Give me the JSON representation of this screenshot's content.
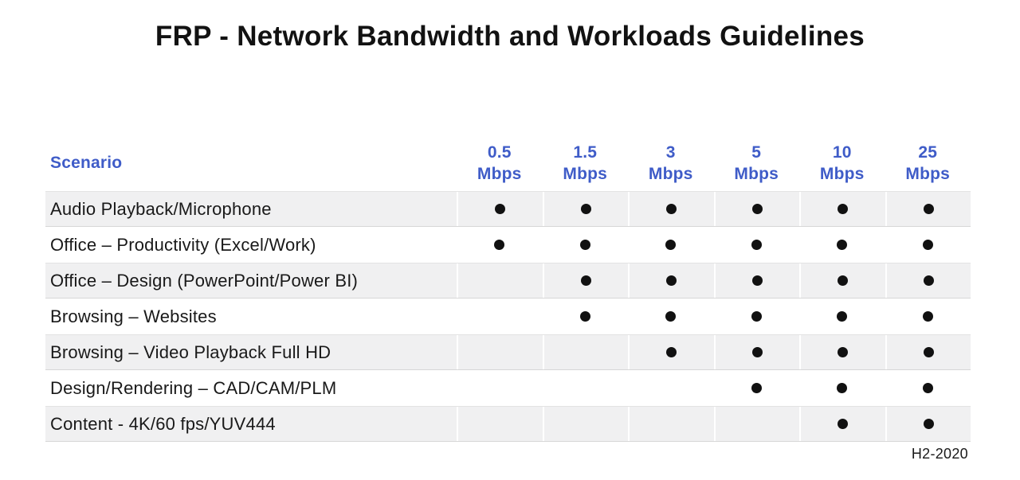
{
  "title": "FRP - Network Bandwidth and Workloads Guidelines",
  "footer_note": "H2-2020",
  "colors": {
    "header_blue": "#3F5CC8",
    "stripe_bg": "#F0F0F1",
    "dot": "#111111",
    "text": "#1B1B1B"
  },
  "table": {
    "scenario_header": "Scenario",
    "bandwidth_columns": [
      {
        "value": "0.5",
        "unit": "Mbps"
      },
      {
        "value": "1.5",
        "unit": "Mbps"
      },
      {
        "value": "3",
        "unit": "Mbps"
      },
      {
        "value": "5",
        "unit": "Mbps"
      },
      {
        "value": "10",
        "unit": "Mbps"
      },
      {
        "value": "25",
        "unit": "Mbps"
      }
    ],
    "rows": [
      {
        "label": "Audio Playback/Microphone",
        "dots": [
          true,
          true,
          true,
          true,
          true,
          true
        ]
      },
      {
        "label": "Office – Productivity (Excel/Work)",
        "dots": [
          true,
          true,
          true,
          true,
          true,
          true
        ]
      },
      {
        "label": "Office – Design (PowerPoint/Power BI)",
        "dots": [
          false,
          true,
          true,
          true,
          true,
          true
        ]
      },
      {
        "label": "Browsing – Websites",
        "dots": [
          false,
          true,
          true,
          true,
          true,
          true
        ]
      },
      {
        "label": "Browsing – Video Playback Full HD",
        "dots": [
          false,
          false,
          true,
          true,
          true,
          true
        ]
      },
      {
        "label": "Design/Rendering – CAD/CAM/PLM",
        "dots": [
          false,
          false,
          false,
          true,
          true,
          true
        ]
      },
      {
        "label": "Content - 4K/60 fps/YUV444",
        "dots": [
          false,
          false,
          false,
          false,
          true,
          true
        ]
      }
    ]
  },
  "chart_data": {
    "type": "table",
    "title": "FRP - Network Bandwidth and Workloads Guidelines",
    "columns": [
      "Scenario",
      "0.5 Mbps",
      "1.5 Mbps",
      "3 Mbps",
      "5 Mbps",
      "10 Mbps",
      "25 Mbps"
    ],
    "rows": [
      {
        "scenario": "Audio Playback/Microphone",
        "supported": [
          true,
          true,
          true,
          true,
          true,
          true
        ]
      },
      {
        "scenario": "Office – Productivity (Excel/Work)",
        "supported": [
          true,
          true,
          true,
          true,
          true,
          true
        ]
      },
      {
        "scenario": "Office – Design (PowerPoint/Power BI)",
        "supported": [
          false,
          true,
          true,
          true,
          true,
          true
        ]
      },
      {
        "scenario": "Browsing – Websites",
        "supported": [
          false,
          true,
          true,
          true,
          true,
          true
        ]
      },
      {
        "scenario": "Browsing – Video Playback Full HD",
        "supported": [
          false,
          false,
          true,
          true,
          true,
          true
        ]
      },
      {
        "scenario": "Design/Rendering – CAD/CAM/PLM",
        "supported": [
          false,
          false,
          false,
          true,
          true,
          true
        ]
      },
      {
        "scenario": "Content - 4K/60 fps/YUV444",
        "supported": [
          false,
          false,
          false,
          false,
          true,
          true
        ]
      }
    ],
    "annotations": [
      "H2-2020"
    ],
    "marker": "filled-dot"
  }
}
